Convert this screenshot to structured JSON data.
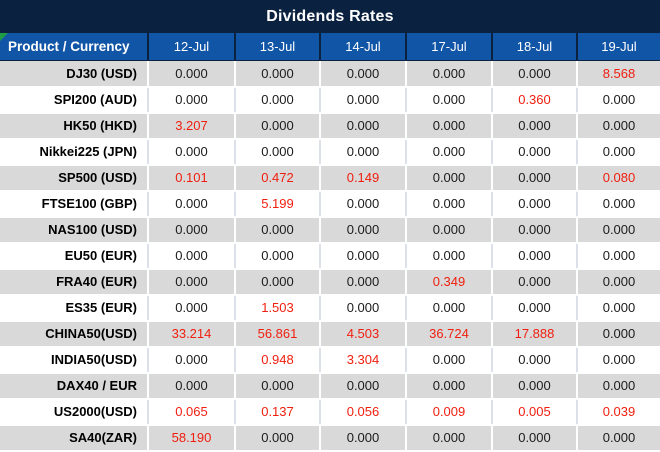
{
  "title": "Dividends Rates",
  "colors": {
    "title_bar_bg": "#0A2240",
    "header_bg": "#1155A6",
    "header_divider": "#0A2240",
    "stripe_row_bg": "#D9D9D9",
    "white_row_bg": "#FFFFFF",
    "highlight_value": "#F01E0E",
    "normal_value": "#1B1B1B",
    "corner_indicator_green": "#1F9D45"
  },
  "icons": {
    "corner_indicator": "cell-corner-indicator"
  },
  "table": {
    "corner_label": "Product / Currency",
    "date_columns": [
      "12-Jul",
      "13-Jul",
      "14-Jul",
      "17-Jul",
      "18-Jul",
      "19-Jul"
    ],
    "rows": [
      {
        "product": "DJ30 (USD)",
        "values": [
          "0.000",
          "0.000",
          "0.000",
          "0.000",
          "0.000",
          "8.568"
        ],
        "highlighted": [
          false,
          false,
          false,
          false,
          false,
          true
        ]
      },
      {
        "product": "SPI200 (AUD)",
        "values": [
          "0.000",
          "0.000",
          "0.000",
          "0.000",
          "0.360",
          "0.000"
        ],
        "highlighted": [
          false,
          false,
          false,
          false,
          true,
          false
        ]
      },
      {
        "product": "HK50 (HKD)",
        "values": [
          "3.207",
          "0.000",
          "0.000",
          "0.000",
          "0.000",
          "0.000"
        ],
        "highlighted": [
          true,
          false,
          false,
          false,
          false,
          false
        ]
      },
      {
        "product": "Nikkei225 (JPN)",
        "values": [
          "0.000",
          "0.000",
          "0.000",
          "0.000",
          "0.000",
          "0.000"
        ],
        "highlighted": [
          false,
          false,
          false,
          false,
          false,
          false
        ]
      },
      {
        "product": "SP500 (USD)",
        "values": [
          "0.101",
          "0.472",
          "0.149",
          "0.000",
          "0.000",
          "0.080"
        ],
        "highlighted": [
          true,
          true,
          true,
          false,
          false,
          true
        ]
      },
      {
        "product": "FTSE100 (GBP)",
        "values": [
          "0.000",
          "5.199",
          "0.000",
          "0.000",
          "0.000",
          "0.000"
        ],
        "highlighted": [
          false,
          true,
          false,
          false,
          false,
          false
        ]
      },
      {
        "product": "NAS100 (USD)",
        "values": [
          "0.000",
          "0.000",
          "0.000",
          "0.000",
          "0.000",
          "0.000"
        ],
        "highlighted": [
          false,
          false,
          false,
          false,
          false,
          false
        ]
      },
      {
        "product": "EU50 (EUR)",
        "values": [
          "0.000",
          "0.000",
          "0.000",
          "0.000",
          "0.000",
          "0.000"
        ],
        "highlighted": [
          false,
          false,
          false,
          false,
          false,
          false
        ]
      },
      {
        "product": "FRA40 (EUR)",
        "values": [
          "0.000",
          "0.000",
          "0.000",
          "0.349",
          "0.000",
          "0.000"
        ],
        "highlighted": [
          false,
          false,
          false,
          true,
          false,
          false
        ]
      },
      {
        "product": "ES35 (EUR)",
        "values": [
          "0.000",
          "1.503",
          "0.000",
          "0.000",
          "0.000",
          "0.000"
        ],
        "highlighted": [
          false,
          true,
          false,
          false,
          false,
          false
        ]
      },
      {
        "product": "CHINA50(USD)",
        "values": [
          "33.214",
          "56.861",
          "4.503",
          "36.724",
          "17.888",
          "0.000"
        ],
        "highlighted": [
          true,
          true,
          true,
          true,
          true,
          false
        ]
      },
      {
        "product": "INDIA50(USD)",
        "values": [
          "0.000",
          "0.948",
          "3.304",
          "0.000",
          "0.000",
          "0.000"
        ],
        "highlighted": [
          false,
          true,
          true,
          false,
          false,
          false
        ]
      },
      {
        "product": "DAX40 / EUR",
        "values": [
          "0.000",
          "0.000",
          "0.000",
          "0.000",
          "0.000",
          "0.000"
        ],
        "highlighted": [
          false,
          false,
          false,
          false,
          false,
          false
        ]
      },
      {
        "product": "US2000(USD)",
        "values": [
          "0.065",
          "0.137",
          "0.056",
          "0.009",
          "0.005",
          "0.039"
        ],
        "highlighted": [
          true,
          true,
          true,
          true,
          true,
          true
        ]
      },
      {
        "product": "SA40(ZAR)",
        "values": [
          "58.190",
          "0.000",
          "0.000",
          "0.000",
          "0.000",
          "0.000"
        ],
        "highlighted": [
          true,
          false,
          false,
          false,
          false,
          false
        ]
      }
    ]
  }
}
